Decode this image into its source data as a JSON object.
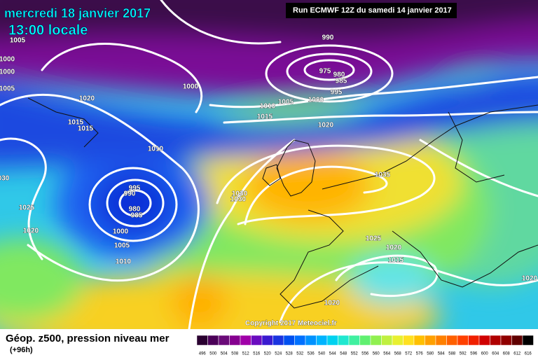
{
  "header": {
    "date": "mercredi 18 janvier 2017",
    "time": "13:00 locale",
    "run": "Run ECMWF 12Z du samedi 14 janvier 2017"
  },
  "footer": {
    "title": "Géop. z500, pression niveau mer",
    "lead": "(+96h)",
    "copyright": "Copyright 2017 Meteociel.fr"
  },
  "isobar_labels": [
    1005,
    1000,
    1000,
    1005,
    1020,
    1015,
    1015,
    1010,
    "030",
    1025,
    1020,
    995,
    990,
    980,
    985,
    1000,
    1005,
    1010,
    1000,
    990,
    975,
    980,
    985,
    995,
    1000,
    1005,
    1010,
    1015,
    1020,
    1030,
    1030,
    1035,
    1025,
    1020,
    1015,
    1020,
    1020
  ],
  "scale": {
    "values": [
      496,
      500,
      504,
      508,
      512,
      516,
      520,
      524,
      528,
      532,
      536,
      540,
      544,
      548,
      552,
      556,
      560,
      564,
      568,
      572,
      576,
      580,
      584,
      588,
      592,
      596,
      600,
      604,
      608,
      612,
      616
    ],
    "colors": [
      "#2a0030",
      "#4b0058",
      "#6a0a78",
      "#85008f",
      "#a000a8",
      "#6a0cbf",
      "#3a1ad0",
      "#1a34e0",
      "#0050f0",
      "#0070ff",
      "#0092ff",
      "#00b4ff",
      "#00d2f0",
      "#20e8d0",
      "#40f0a0",
      "#60f070",
      "#90f050",
      "#c0f040",
      "#e8f030",
      "#ffe020",
      "#ffc000",
      "#ffa000",
      "#ff8000",
      "#ff6000",
      "#ff4000",
      "#f02000",
      "#d00000",
      "#b00000",
      "#900000",
      "#600000",
      "#000000"
    ]
  }
}
